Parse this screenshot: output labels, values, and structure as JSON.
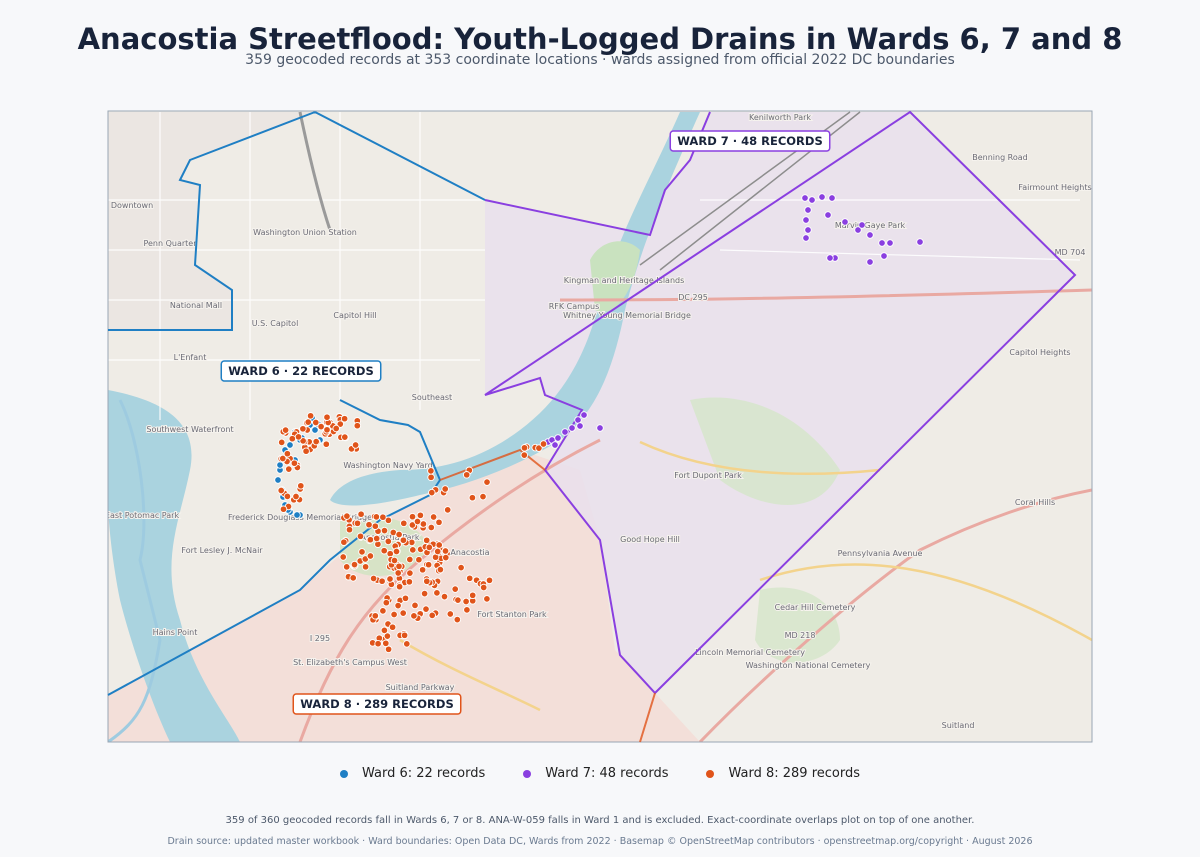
{
  "header": {
    "title": "Anacostia Streetflood: Youth-Logged Drains in Wards 6, 7 and 8",
    "subtitle": "359 geocoded records at 353 coordinate locations · wards assigned from official 2022 DC boundaries"
  },
  "map": {
    "ward_labels": [
      "WARD 6  ·  22 RECORDS",
      "WARD 7  ·  48 RECORDS",
      "WARD 8  ·  289 RECORDS"
    ],
    "ward_colors": [
      "#1f7fc4",
      "#8a3fe0",
      "#e0541a"
    ],
    "place_labels": [
      "Downtown",
      "Penn Quarter",
      "Washington Union Station",
      "Capitol Hill",
      "U.S. Capitol",
      "National Mall",
      "L'Enfant",
      "Southwest Waterfront",
      "Southeast",
      "Washington Navy Yard",
      "Frederick Douglass Memorial Bridge",
      "East Potomac Park",
      "Fort Lesley J. McNair",
      "Hains Point",
      "Anacostia",
      "Anacostia Park",
      "Fort Stanton Park",
      "St. Elizabeth's Campus West",
      "RFK Campus",
      "Kingman and Heritage Islands",
      "Whitney Young Memorial Bridge",
      "Kenilworth Park",
      "Marvin Gaye Park",
      "Fairmount Heights",
      "Capitol Heights",
      "Coral Hills",
      "Good Hope Hill",
      "Fort Dupont Park",
      "Cedar Hill Cemetery",
      "Lincoln Memorial Cemetery",
      "Washington National Cemetery",
      "Suitland",
      "Pennsylvania Avenue",
      "Benning Road",
      "Suitland Parkway",
      "I 295",
      "DC 295",
      "MD 704",
      "MD 218"
    ]
  },
  "legend": [
    "Ward 6: 22 records",
    "Ward 7: 48 records",
    "Ward 8: 289 records"
  ],
  "footer": {
    "note": "359 of 360 geocoded records fall in Wards 6, 7 or 8. ANA-W-059 falls in Ward 1 and is excluded. Exact-coordinate overlaps plot on top of one another.",
    "source": "Drain source: updated master workbook · Ward boundaries: Open Data DC, Wards from 2022 · Basemap © OpenStreetMap contributors · openstreetmap.org/copyright · August 2026"
  }
}
